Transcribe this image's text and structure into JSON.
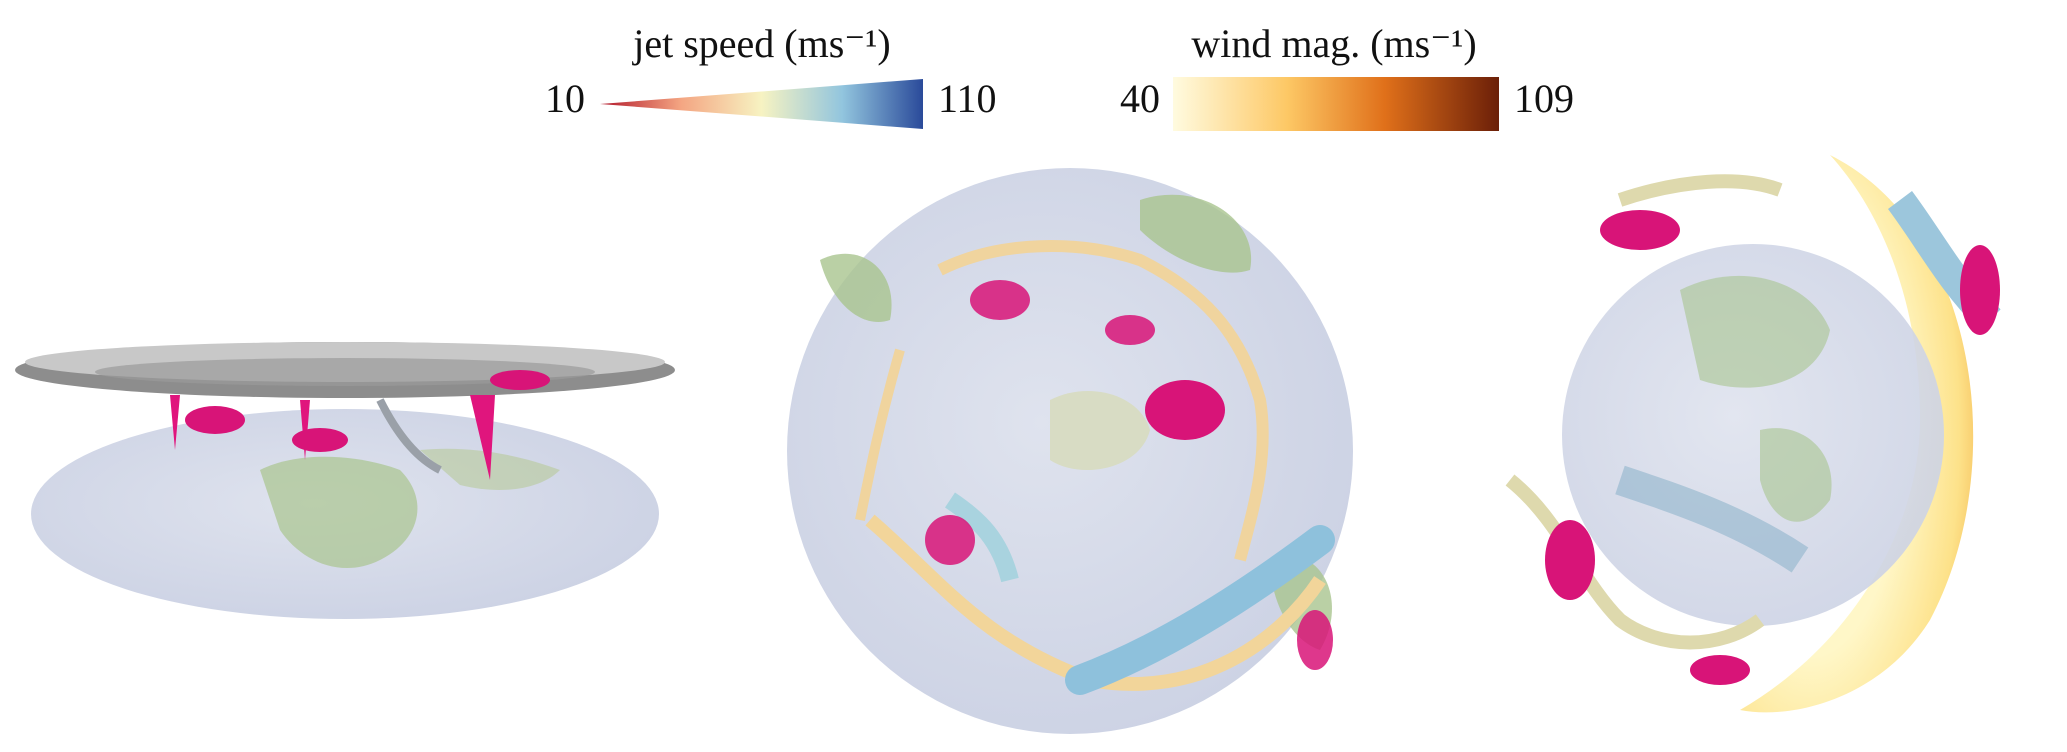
{
  "legends": [
    {
      "title": "jet speed (ms⁻¹)",
      "min": 10,
      "max": 110
    },
    {
      "title": "wind mag. (ms⁻¹)",
      "min": 40,
      "max": 109
    }
  ]
}
